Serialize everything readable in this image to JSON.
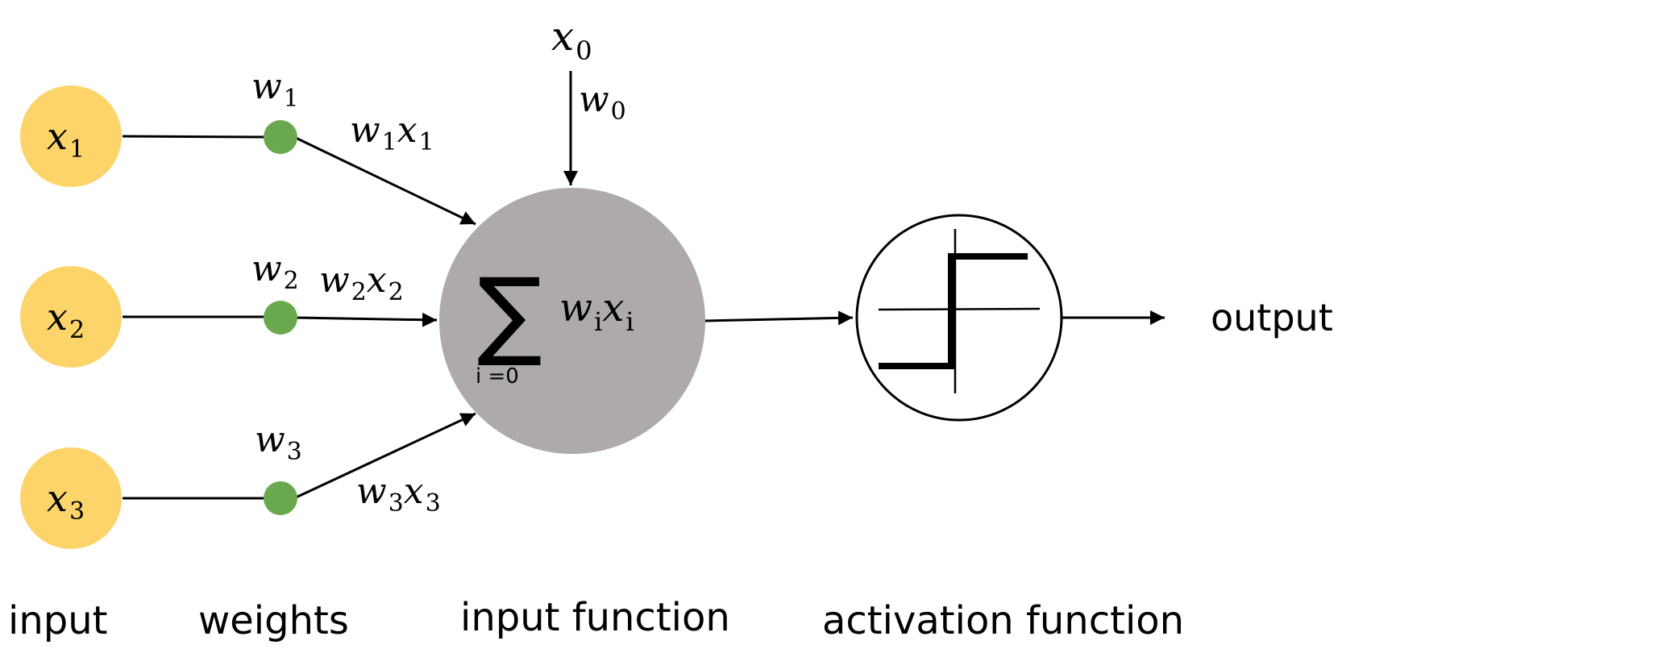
{
  "colors": {
    "input_node": "#fdd46a",
    "weight_node": "#6aa84f",
    "sum_node": "#aeaaaa",
    "activation_node": "#ffffff",
    "stroke": "#000000"
  },
  "inputs": [
    {
      "var": "x",
      "sub": "1"
    },
    {
      "var": "x",
      "sub": "2"
    },
    {
      "var": "x",
      "sub": "3"
    }
  ],
  "weights": [
    {
      "var": "w",
      "sub": "1"
    },
    {
      "var": "w",
      "sub": "2"
    },
    {
      "var": "w",
      "sub": "3"
    }
  ],
  "products": [
    {
      "w": "w",
      "w_sub": "1",
      "x": "x",
      "x_sub": "1"
    },
    {
      "w": "w",
      "w_sub": "2",
      "x": "x",
      "x_sub": "2"
    },
    {
      "w": "w",
      "w_sub": "3",
      "x": "x",
      "x_sub": "3"
    }
  ],
  "bias": {
    "x": "x",
    "x_sub": "0",
    "w": "w",
    "w_sub": "0"
  },
  "sum": {
    "symbol": "∑",
    "lower_limit": "i =0",
    "term_w": "w",
    "term_w_sub": "i",
    "term_x": "x",
    "term_x_sub": "i"
  },
  "output_label": "output",
  "captions": {
    "input": "input",
    "weights": "weights",
    "input_function": "input function",
    "activation_function": "activation function"
  }
}
